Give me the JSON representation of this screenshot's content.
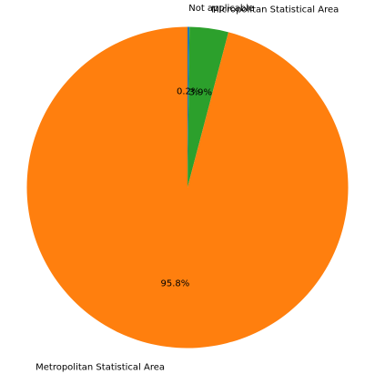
{
  "chart_data": {
    "type": "pie",
    "start_angle_deg": 90,
    "direction": "clockwise",
    "slices": [
      {
        "label": "Not applicable",
        "value": 0.2,
        "pct_label": "0.2%",
        "color": "#1f77b4"
      },
      {
        "label": "Micropolitan Statistical Area",
        "value": 3.9,
        "pct_label": "3.9%",
        "color": "#2ca02c"
      },
      {
        "label": "Metropolitan Statistical Area",
        "value": 95.8,
        "pct_label": "95.8%",
        "color": "#ff7f0e"
      }
    ]
  }
}
